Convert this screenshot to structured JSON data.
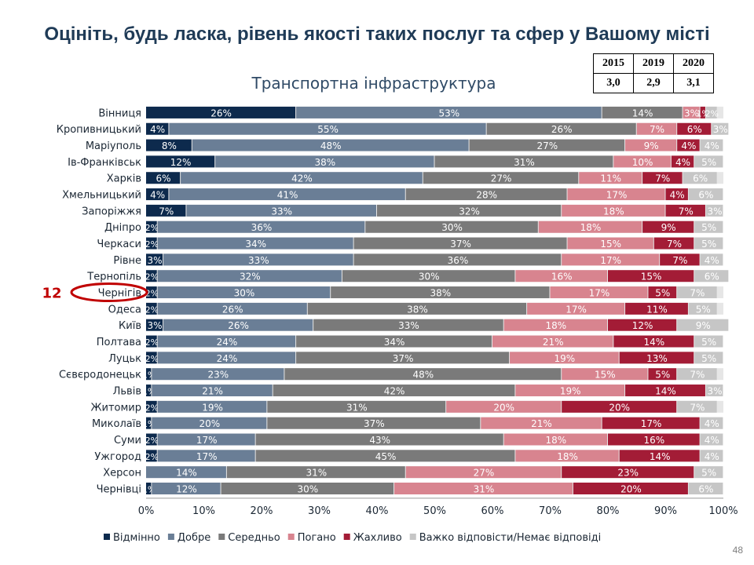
{
  "slide": {
    "title": "Оцініть, будь ласка, рівень якості таких послуг та сфер у Вашому місті",
    "page_number": "48"
  },
  "score_table": {
    "years": [
      "2015",
      "2019",
      "2020"
    ],
    "scores": [
      "3,0",
      "2,9",
      "3,1"
    ]
  },
  "annotation": {
    "rank": "12",
    "highlighted_city": "Чернігів"
  },
  "colors": {
    "accent_red": "#c00000",
    "title_color": "#1f3b57"
  },
  "chart_data": {
    "type": "bar",
    "orientation": "horizontal",
    "stacked": true,
    "percent_stacked": true,
    "title": "Транспортна інфраструктура",
    "xlabel": "",
    "ylabel": "",
    "xlim": [
      0,
      100
    ],
    "x_ticks": [
      "0%",
      "10%",
      "20%",
      "30%",
      "40%",
      "50%",
      "60%",
      "70%",
      "80%",
      "90%",
      "100%"
    ],
    "legend_position": "bottom",
    "grid": false,
    "categories": [
      "Вінниця",
      "Кропивницький",
      "Маріуполь",
      "Ів-Франківськ",
      "Харків",
      "Хмельницький",
      "Запоріжжя",
      "Дніпро",
      "Черкаси",
      "Рівне",
      "Тернопіль",
      "Чернігів",
      "Одеса",
      "Київ",
      "Полтава",
      "Луцьк",
      "Сєвєродонецьк",
      "Львів",
      "Житомир",
      "Миколаїв",
      "Суми",
      "Ужгород",
      "Херсон",
      "Чернівці"
    ],
    "series": [
      {
        "name": "Відмінно",
        "color": "#0d2a4d",
        "label_color": "#ffffff",
        "values": [
          26,
          4,
          8,
          12,
          6,
          4,
          7,
          2,
          2,
          3,
          2,
          2,
          2,
          3,
          2,
          2,
          1,
          1,
          2,
          1,
          2,
          2,
          0,
          1
        ]
      },
      {
        "name": "Добре",
        "color": "#6a7e96",
        "label_color": "#ffffff",
        "values": [
          53,
          55,
          48,
          38,
          42,
          41,
          33,
          36,
          34,
          33,
          32,
          30,
          26,
          26,
          24,
          24,
          23,
          21,
          19,
          20,
          17,
          17,
          14,
          12
        ]
      },
      {
        "name": "Середньо",
        "color": "#7a7a7a",
        "label_color": "#ffffff",
        "values": [
          14,
          26,
          27,
          31,
          27,
          28,
          32,
          30,
          37,
          36,
          30,
          38,
          38,
          33,
          34,
          37,
          48,
          42,
          31,
          37,
          43,
          45,
          31,
          30
        ]
      },
      {
        "name": "Погано",
        "color": "#d8848f",
        "label_color": "#ffffff",
        "values": [
          3,
          7,
          9,
          10,
          11,
          17,
          18,
          18,
          15,
          17,
          16,
          17,
          17,
          18,
          21,
          19,
          15,
          19,
          20,
          21,
          18,
          18,
          27,
          31
        ]
      },
      {
        "name": "Жахливо",
        "color": "#a31c36",
        "label_color": "#ffffff",
        "values": [
          1,
          6,
          4,
          4,
          7,
          4,
          7,
          9,
          7,
          7,
          15,
          5,
          11,
          12,
          14,
          13,
          5,
          14,
          20,
          17,
          16,
          14,
          23,
          20
        ]
      },
      {
        "name": "Важко відповісти/Немає відповіді",
        "color": "#c6c6c6",
        "label_color": "#ffffff",
        "values": [
          2,
          3,
          4,
          5,
          6,
          6,
          3,
          5,
          5,
          4,
          6,
          7,
          5,
          9,
          5,
          5,
          7,
          3,
          7,
          4,
          4,
          4,
          5,
          6
        ]
      }
    ]
  }
}
